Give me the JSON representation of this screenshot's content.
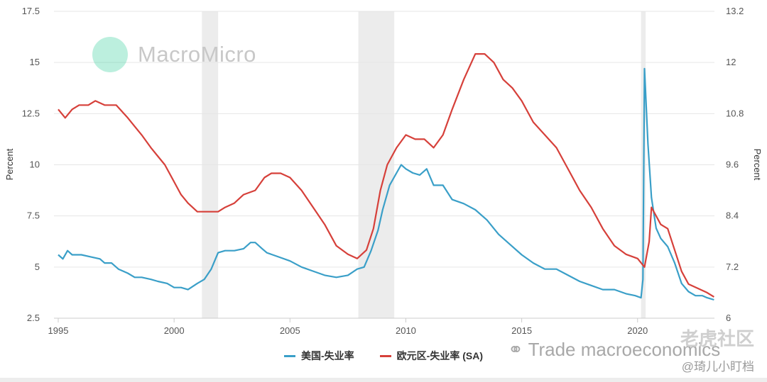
{
  "watermark": {
    "brand": "MacroMicro",
    "logo_icon": "macromicro-logo-icon",
    "wechat_text": "Trade macroeconomics",
    "wechat_icon": "wechat-icon",
    "community": "老虎社区",
    "user": "@琦儿小盯档"
  },
  "chart_data": {
    "type": "line",
    "title": "",
    "left_axis": {
      "label": "Percent",
      "range": [
        2.5,
        17.5
      ],
      "ticks": [
        "2.5",
        "5",
        "7.5",
        "10",
        "12.5",
        "15",
        "17.5"
      ]
    },
    "right_axis": {
      "label": "Percent",
      "range": [
        6,
        13.2
      ],
      "ticks": [
        "6",
        "7.2",
        "8.4",
        "9.6",
        "10.8",
        "12",
        "13.2"
      ]
    },
    "x_axis": {
      "range": [
        1995,
        2023.4
      ],
      "ticks": [
        "1995",
        "2000",
        "2005",
        "2010",
        "2015",
        "2020"
      ]
    },
    "grid": true,
    "legend_position": "bottom-center",
    "recessions": [
      [
        2001.2,
        2001.9
      ],
      [
        2007.95,
        2009.5
      ],
      [
        2020.15,
        2020.35
      ]
    ],
    "series": [
      {
        "name": "美国-失业率",
        "axis": "left",
        "color": "#3a9fc8",
        "points": [
          [
            1995.0,
            5.6
          ],
          [
            1995.2,
            5.4
          ],
          [
            1995.4,
            5.8
          ],
          [
            1995.6,
            5.6
          ],
          [
            1996.0,
            5.6
          ],
          [
            1996.4,
            5.5
          ],
          [
            1996.8,
            5.4
          ],
          [
            1997.0,
            5.2
          ],
          [
            1997.3,
            5.2
          ],
          [
            1997.6,
            4.9
          ],
          [
            1998.0,
            4.7
          ],
          [
            1998.3,
            4.5
          ],
          [
            1998.6,
            4.5
          ],
          [
            1999.0,
            4.4
          ],
          [
            1999.3,
            4.3
          ],
          [
            1999.7,
            4.2
          ],
          [
            2000.0,
            4.0
          ],
          [
            2000.3,
            4.0
          ],
          [
            2000.6,
            3.9
          ],
          [
            2001.0,
            4.2
          ],
          [
            2001.3,
            4.4
          ],
          [
            2001.6,
            4.9
          ],
          [
            2001.9,
            5.7
          ],
          [
            2002.2,
            5.8
          ],
          [
            2002.6,
            5.8
          ],
          [
            2003.0,
            5.9
          ],
          [
            2003.3,
            6.2
          ],
          [
            2003.5,
            6.2
          ],
          [
            2003.8,
            5.9
          ],
          [
            2004.0,
            5.7
          ],
          [
            2004.5,
            5.5
          ],
          [
            2005.0,
            5.3
          ],
          [
            2005.5,
            5.0
          ],
          [
            2006.0,
            4.8
          ],
          [
            2006.5,
            4.6
          ],
          [
            2007.0,
            4.5
          ],
          [
            2007.5,
            4.6
          ],
          [
            2007.9,
            4.9
          ],
          [
            2008.2,
            5.0
          ],
          [
            2008.5,
            5.8
          ],
          [
            2008.8,
            6.8
          ],
          [
            2009.0,
            7.8
          ],
          [
            2009.3,
            9.0
          ],
          [
            2009.6,
            9.6
          ],
          [
            2009.8,
            10.0
          ],
          [
            2010.0,
            9.8
          ],
          [
            2010.3,
            9.6
          ],
          [
            2010.6,
            9.5
          ],
          [
            2010.9,
            9.8
          ],
          [
            2011.2,
            9.0
          ],
          [
            2011.6,
            9.0
          ],
          [
            2012.0,
            8.3
          ],
          [
            2012.5,
            8.1
          ],
          [
            2013.0,
            7.8
          ],
          [
            2013.5,
            7.3
          ],
          [
            2014.0,
            6.6
          ],
          [
            2014.5,
            6.1
          ],
          [
            2015.0,
            5.6
          ],
          [
            2015.5,
            5.2
          ],
          [
            2016.0,
            4.9
          ],
          [
            2016.5,
            4.9
          ],
          [
            2017.0,
            4.6
          ],
          [
            2017.5,
            4.3
          ],
          [
            2018.0,
            4.1
          ],
          [
            2018.5,
            3.9
          ],
          [
            2019.0,
            3.9
          ],
          [
            2019.5,
            3.7
          ],
          [
            2019.9,
            3.6
          ],
          [
            2020.15,
            3.5
          ],
          [
            2020.23,
            4.4
          ],
          [
            2020.3,
            14.7
          ],
          [
            2020.45,
            11.0
          ],
          [
            2020.6,
            8.4
          ],
          [
            2020.8,
            6.9
          ],
          [
            2021.0,
            6.4
          ],
          [
            2021.3,
            6.0
          ],
          [
            2021.6,
            5.2
          ],
          [
            2021.9,
            4.2
          ],
          [
            2022.2,
            3.8
          ],
          [
            2022.5,
            3.6
          ],
          [
            2022.8,
            3.6
          ],
          [
            2023.0,
            3.5
          ],
          [
            2023.3,
            3.4
          ]
        ]
      },
      {
        "name": "欧元区-失业率 (SA)",
        "axis": "right",
        "color": "#d6403a",
        "points": [
          [
            1995.0,
            10.9
          ],
          [
            1995.3,
            10.7
          ],
          [
            1995.6,
            10.9
          ],
          [
            1995.9,
            11.0
          ],
          [
            1996.3,
            11.0
          ],
          [
            1996.6,
            11.1
          ],
          [
            1997.0,
            11.0
          ],
          [
            1997.5,
            11.0
          ],
          [
            1998.0,
            10.7
          ],
          [
            1998.3,
            10.5
          ],
          [
            1998.6,
            10.3
          ],
          [
            1999.0,
            10.0
          ],
          [
            1999.3,
            9.8
          ],
          [
            1999.6,
            9.6
          ],
          [
            2000.0,
            9.2
          ],
          [
            2000.3,
            8.9
          ],
          [
            2000.6,
            8.7
          ],
          [
            2001.0,
            8.5
          ],
          [
            2001.5,
            8.5
          ],
          [
            2001.9,
            8.5
          ],
          [
            2002.2,
            8.6
          ],
          [
            2002.6,
            8.7
          ],
          [
            2003.0,
            8.9
          ],
          [
            2003.5,
            9.0
          ],
          [
            2003.9,
            9.3
          ],
          [
            2004.2,
            9.4
          ],
          [
            2004.6,
            9.4
          ],
          [
            2005.0,
            9.3
          ],
          [
            2005.5,
            9.0
          ],
          [
            2006.0,
            8.6
          ],
          [
            2006.5,
            8.2
          ],
          [
            2007.0,
            7.7
          ],
          [
            2007.5,
            7.5
          ],
          [
            2007.9,
            7.4
          ],
          [
            2008.3,
            7.6
          ],
          [
            2008.6,
            8.1
          ],
          [
            2008.9,
            9.0
          ],
          [
            2009.2,
            9.6
          ],
          [
            2009.6,
            10.0
          ],
          [
            2010.0,
            10.3
          ],
          [
            2010.4,
            10.2
          ],
          [
            2010.8,
            10.2
          ],
          [
            2011.2,
            10.0
          ],
          [
            2011.6,
            10.3
          ],
          [
            2012.0,
            10.9
          ],
          [
            2012.5,
            11.6
          ],
          [
            2013.0,
            12.2
          ],
          [
            2013.4,
            12.2
          ],
          [
            2013.8,
            12.0
          ],
          [
            2014.2,
            11.6
          ],
          [
            2014.6,
            11.4
          ],
          [
            2015.0,
            11.1
          ],
          [
            2015.5,
            10.6
          ],
          [
            2016.0,
            10.3
          ],
          [
            2016.5,
            10.0
          ],
          [
            2017.0,
            9.5
          ],
          [
            2017.5,
            9.0
          ],
          [
            2018.0,
            8.6
          ],
          [
            2018.5,
            8.1
          ],
          [
            2019.0,
            7.7
          ],
          [
            2019.5,
            7.5
          ],
          [
            2020.0,
            7.4
          ],
          [
            2020.3,
            7.2
          ],
          [
            2020.5,
            7.8
          ],
          [
            2020.6,
            8.6
          ],
          [
            2020.8,
            8.4
          ],
          [
            2021.0,
            8.2
          ],
          [
            2021.3,
            8.1
          ],
          [
            2021.6,
            7.6
          ],
          [
            2021.9,
            7.1
          ],
          [
            2022.2,
            6.8
          ],
          [
            2022.6,
            6.7
          ],
          [
            2023.0,
            6.6
          ],
          [
            2023.3,
            6.5
          ]
        ]
      }
    ]
  }
}
